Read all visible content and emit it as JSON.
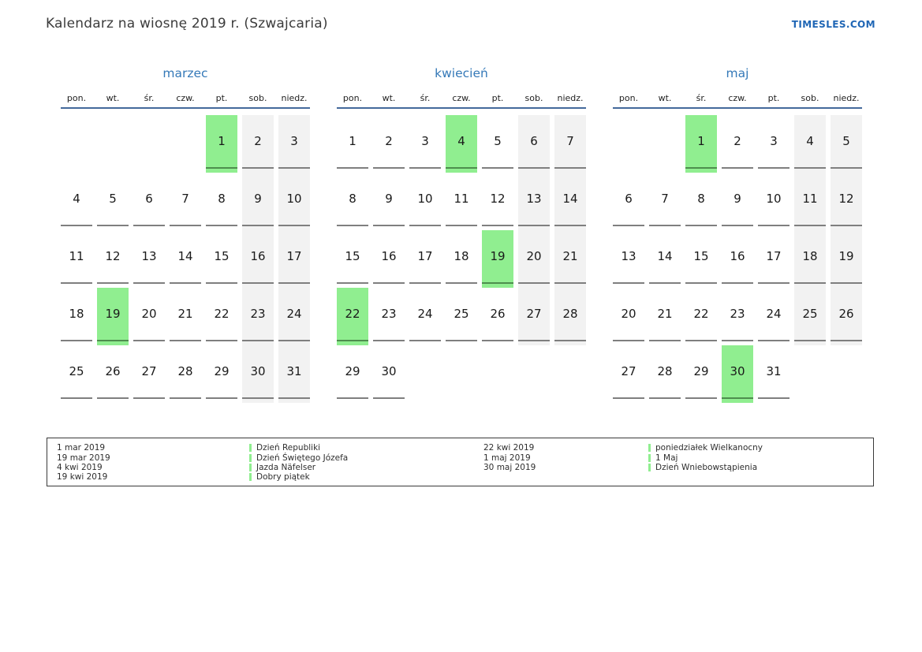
{
  "header": {
    "title": "Kalendarz na wiosnę 2019 r. (Szwajcaria)",
    "site": "TIMESLES.COM"
  },
  "colors": {
    "accent_blue": "#3579b8",
    "link_blue": "#1f66b5",
    "header_line": "#44699b",
    "highlight_green": "#90ee90",
    "weekend_gray": "#f2f2f2",
    "cell_underline": "#7f7f7f",
    "highlight_underline": "#4e8e4e"
  },
  "weekdays": [
    "pon.",
    "wt.",
    "śr.",
    "czw.",
    "pt.",
    "sob.",
    "niedz."
  ],
  "months": [
    {
      "name": "marzec",
      "highlights": [
        "1",
        "19"
      ],
      "weeks": [
        [
          "",
          "",
          "",
          "",
          "1",
          "2",
          "3"
        ],
        [
          "4",
          "5",
          "6",
          "7",
          "8",
          "9",
          "10"
        ],
        [
          "11",
          "12",
          "13",
          "14",
          "15",
          "16",
          "17"
        ],
        [
          "18",
          "19",
          "20",
          "21",
          "22",
          "23",
          "24"
        ],
        [
          "25",
          "26",
          "27",
          "28",
          "29",
          "30",
          "31"
        ]
      ]
    },
    {
      "name": "kwiecień",
      "highlights": [
        "4",
        "19",
        "22"
      ],
      "weeks": [
        [
          "1",
          "2",
          "3",
          "4",
          "5",
          "6",
          "7"
        ],
        [
          "8",
          "9",
          "10",
          "11",
          "12",
          "13",
          "14"
        ],
        [
          "15",
          "16",
          "17",
          "18",
          "19",
          "20",
          "21"
        ],
        [
          "22",
          "23",
          "24",
          "25",
          "26",
          "27",
          "28"
        ],
        [
          "29",
          "30",
          "",
          "",
          "",
          "",
          ""
        ]
      ]
    },
    {
      "name": "maj",
      "highlights": [
        "1",
        "30"
      ],
      "weeks": [
        [
          "",
          "",
          "1",
          "2",
          "3",
          "4",
          "5"
        ],
        [
          "6",
          "7",
          "8",
          "9",
          "10",
          "11",
          "12"
        ],
        [
          "13",
          "14",
          "15",
          "16",
          "17",
          "18",
          "19"
        ],
        [
          "20",
          "21",
          "22",
          "23",
          "24",
          "25",
          "26"
        ],
        [
          "27",
          "28",
          "29",
          "30",
          "31",
          "",
          ""
        ]
      ]
    }
  ],
  "legend": {
    "groups": [
      {
        "items": [
          {
            "date": "1 mar 2019",
            "name": "Dzień Republiki"
          },
          {
            "date": "19 mar 2019",
            "name": "Dzień Świętego Józefa"
          },
          {
            "date": "4 kwi 2019",
            "name": "Jazda Näfelser"
          },
          {
            "date": "19 kwi 2019",
            "name": "Dobry piątek"
          }
        ]
      },
      {
        "items": [
          {
            "date": "22 kwi 2019",
            "name": "poniedziałek Wielkanocny"
          },
          {
            "date": "1 maj 2019",
            "name": "1 Maj"
          },
          {
            "date": "30 maj 2019",
            "name": "Dzień Wniebowstąpienia"
          }
        ]
      }
    ]
  }
}
